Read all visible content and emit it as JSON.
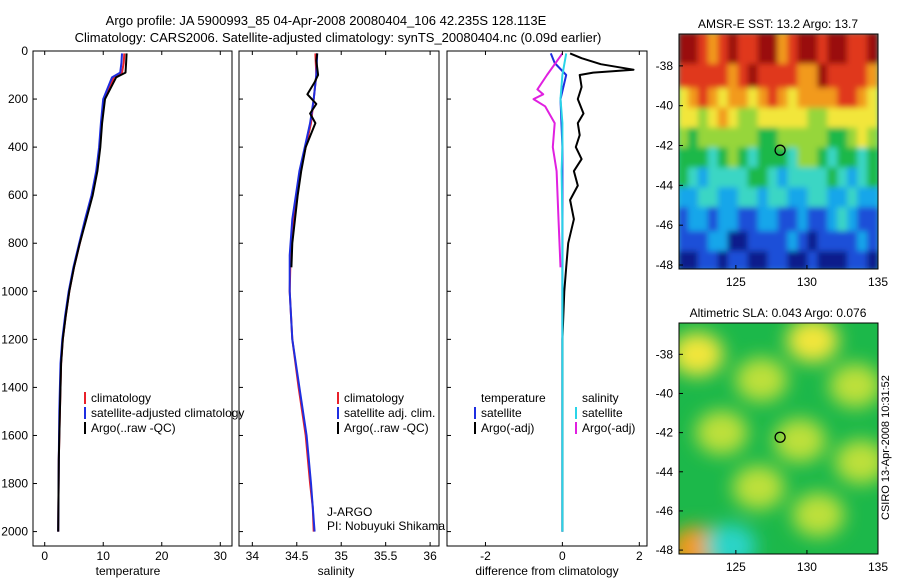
{
  "figure": {
    "title_line1": "Argo profile: JA 5900993_85 04-Apr-2008 20080404_106 42.235S 128.113E",
    "title_line2": "Climatology: CARS2006. Satellite-adjusted climatology: synTS_20080404.nc (0.09d earlier)",
    "footer": "CSIRO 13-Apr-2008 10:31:52"
  },
  "colors": {
    "climatology": "#e8202a",
    "satellite": "#1e2ee0",
    "argo": "#000000",
    "satellite_salinity_diff": "#2ad4e8",
    "argo_salinity_diff": "#e020e0"
  },
  "chart_data": [
    {
      "type": "line",
      "id": "temperature",
      "xlabel": "temperature",
      "xlim": [
        -2,
        32
      ],
      "ylim": [
        0,
        2060
      ],
      "y_reversed": true,
      "xticks": [
        0,
        10,
        20,
        30
      ],
      "xtick_labels": [
        "0",
        "10",
        "20",
        "30"
      ],
      "yticks": [
        0,
        200,
        400,
        600,
        800,
        1000,
        1200,
        1400,
        1600,
        1800,
        2000
      ],
      "ytick_labels": [
        "0",
        "200",
        "400",
        "600",
        "800",
        "1000",
        "1200",
        "1400",
        "1600",
        "1800",
        "2000"
      ],
      "legend": [
        "climatology",
        "satellite-adjusted climatology",
        "Argo(..raw -QC)"
      ],
      "series": [
        {
          "name": "climatology",
          "color": "#e8202a",
          "x": [
            13.6,
            13.5,
            13.2,
            11.8,
            10.2,
            9.7,
            9.4,
            8.9,
            8.1,
            7.0,
            6.0,
            5.0,
            4.2,
            3.6,
            3.1,
            2.8,
            2.6,
            2.4,
            2.3
          ],
          "y": [
            10,
            50,
            90,
            110,
            200,
            300,
            400,
            500,
            600,
            700,
            800,
            900,
            1000,
            1100,
            1200,
            1300,
            1500,
            1700,
            2000
          ]
        },
        {
          "name": "satellite-adjusted climatology",
          "color": "#1e2ee0",
          "x": [
            13.2,
            13.1,
            12.9,
            11.5,
            10.0,
            9.6,
            9.3,
            8.8,
            8.0,
            6.9,
            5.9,
            4.9,
            4.1,
            3.5,
            3.0,
            2.7,
            2.5,
            2.4,
            2.3
          ],
          "y": [
            10,
            50,
            90,
            110,
            200,
            300,
            400,
            500,
            600,
            700,
            800,
            900,
            1000,
            1100,
            1200,
            1300,
            1500,
            1700,
            2000
          ]
        },
        {
          "name": "Argo(..raw -QC)",
          "color": "#000000",
          "x": [
            14.0,
            13.9,
            13.8,
            12.2,
            10.3,
            9.8,
            9.5,
            9.0,
            8.2,
            7.1,
            6.0,
            5.0,
            4.2,
            3.6,
            3.1,
            2.8,
            2.6,
            2.4,
            2.3
          ],
          "y": [
            10,
            50,
            90,
            110,
            200,
            300,
            400,
            500,
            600,
            700,
            800,
            900,
            1000,
            1100,
            1200,
            1300,
            1500,
            1700,
            2000
          ]
        }
      ]
    },
    {
      "type": "line",
      "id": "salinity",
      "xlabel": "salinity",
      "xlim": [
        33.85,
        36.1
      ],
      "ylim": [
        0,
        2060
      ],
      "y_reversed": true,
      "xticks": [
        34,
        34.5,
        35,
        35.5,
        36
      ],
      "xtick_labels": [
        "34",
        "34.5",
        "35",
        "35.5",
        "36"
      ],
      "legend": [
        "climatology",
        "satellite adj. clim.",
        "Argo(..raw -QC)"
      ],
      "annotation": [
        "J-ARGO",
        "PI: Nobuyuki Shikama"
      ],
      "series": [
        {
          "name": "climatology",
          "color": "#e8202a",
          "x": [
            34.71,
            34.72,
            34.69,
            34.66,
            34.6,
            34.54,
            34.5,
            34.46,
            34.43,
            34.42,
            34.45,
            34.52,
            34.6,
            34.65,
            34.68,
            34.69
          ],
          "y": [
            10,
            100,
            200,
            300,
            400,
            500,
            600,
            700,
            850,
            1000,
            1200,
            1400,
            1600,
            1800,
            1900,
            2000
          ]
        },
        {
          "name": "satellite adj. clim.",
          "color": "#1e2ee0",
          "x": [
            34.73,
            34.72,
            34.69,
            34.65,
            34.59,
            34.53,
            34.49,
            34.45,
            34.42,
            34.42,
            34.45,
            34.53,
            34.61,
            34.66,
            34.68,
            34.7
          ],
          "y": [
            10,
            100,
            200,
            300,
            400,
            500,
            600,
            700,
            850,
            1000,
            1200,
            1400,
            1600,
            1800,
            1900,
            2000
          ]
        },
        {
          "name": "Argo(..raw -QC)",
          "color": "#000000",
          "x": [
            34.73,
            34.72,
            34.74,
            34.7,
            34.62,
            34.72,
            34.65,
            34.71,
            34.6,
            34.55,
            34.51,
            34.48,
            34.45,
            34.44
          ],
          "y": [
            10,
            40,
            100,
            130,
            180,
            220,
            260,
            300,
            400,
            500,
            600,
            700,
            800,
            900
          ]
        }
      ]
    },
    {
      "type": "line",
      "id": "difference",
      "xlabel": "difference from climatology",
      "xlim": [
        -3,
        2.2
      ],
      "ylim": [
        0,
        2060
      ],
      "y_reversed": true,
      "xticks": [
        -2,
        0,
        2
      ],
      "xtick_labels": [
        "-2",
        "0",
        "2"
      ],
      "legend_left": [
        "temperature",
        "satellite",
        "Argo(-adj)"
      ],
      "legend_right": [
        "salinity",
        "satellite",
        "Argo(-adj)"
      ],
      "series": [
        {
          "name": "temperature satellite",
          "color": "#1e2ee0",
          "x": [
            -0.3,
            -0.2,
            0.1,
            -0.05,
            0.0,
            0.0,
            0.0,
            0.0,
            0.0
          ],
          "y": [
            10,
            50,
            100,
            200,
            400,
            600,
            1000,
            1500,
            2000
          ]
        },
        {
          "name": "temperature Argo(-adj)",
          "color": "#000000",
          "x": [
            0.2,
            0.5,
            1.0,
            1.85,
            0.8,
            0.45,
            0.5,
            0.4,
            0.55,
            0.4,
            0.45,
            0.35,
            0.5,
            0.3,
            0.4,
            0.2,
            0.3,
            0.15,
            0.1,
            0.05,
            0.0,
            0.0
          ],
          "y": [
            10,
            30,
            55,
            78,
            90,
            100,
            150,
            200,
            260,
            300,
            350,
            400,
            450,
            500,
            560,
            620,
            700,
            800,
            900,
            1000,
            1200,
            2000
          ]
        },
        {
          "name": "salinity satellite",
          "color": "#2ad4e8",
          "x": [
            0.1,
            0.0,
            -0.05,
            0.0,
            0.0,
            -0.02,
            0.0,
            0.0,
            0.0,
            0.0
          ],
          "y": [
            10,
            100,
            200,
            300,
            400,
            500,
            700,
            1000,
            1500,
            2000
          ]
        },
        {
          "name": "salinity Argo(-adj)",
          "color": "#e020e0",
          "x": [
            0.0,
            -0.4,
            -0.65,
            -0.5,
            -0.75,
            -0.45,
            -0.2,
            -0.25,
            -0.15,
            -0.1,
            -0.05
          ],
          "y": [
            10,
            100,
            160,
            180,
            200,
            230,
            300,
            400,
            500,
            700,
            900
          ]
        }
      ]
    },
    {
      "type": "heatmap",
      "id": "sst_map",
      "title": "AMSR-E SST: 13.2 Argo: 13.7",
      "xlim": [
        121,
        135
      ],
      "ylim": [
        -48.2,
        -36.4
      ],
      "xticks": [
        125,
        130,
        135
      ],
      "xtick_labels": [
        "125",
        "130",
        "135"
      ],
      "yticks": [
        -38,
        -40,
        -42,
        -44,
        -46,
        -48
      ],
      "ytick_labels": [
        "-38",
        "-40",
        "-42",
        "-44",
        "-46",
        "-48"
      ],
      "marker": {
        "lon": 128.113,
        "lat": -42.235
      },
      "colormap": [
        "#0a1a8c",
        "#1f4fd8",
        "#16a6ea",
        "#3ad6c4",
        "#1cb84a",
        "#96d63a",
        "#f2e63a",
        "#f29a1c",
        "#e0381c",
        "#9a0a0a"
      ],
      "lat_bands": [
        {
          "lat": -36.4,
          "value": 8.6
        },
        {
          "lat": -38.0,
          "value": 8.2
        },
        {
          "lat": -39.2,
          "value": 7.4
        },
        {
          "lat": -40.2,
          "value": 6.5
        },
        {
          "lat": -41.2,
          "value": 5.1
        },
        {
          "lat": -42.2,
          "value": 4.4
        },
        {
          "lat": -43.2,
          "value": 3.5
        },
        {
          "lat": -44.2,
          "value": 2.8
        },
        {
          "lat": -45.2,
          "value": 2.0
        },
        {
          "lat": -46.4,
          "value": 1.2
        },
        {
          "lat": -47.4,
          "value": 0.5
        },
        {
          "lat": -48.2,
          "value": 0.2
        }
      ]
    },
    {
      "type": "heatmap",
      "id": "sla_map",
      "title": "Altimetric SLA: 0.043 Argo: 0.076",
      "xlim": [
        121,
        135
      ],
      "ylim": [
        -48.2,
        -36.4
      ],
      "xticks": [
        125,
        130,
        135
      ],
      "xtick_labels": [
        "125",
        "130",
        "135"
      ],
      "yticks": [
        -38,
        -40,
        -42,
        -44,
        -46,
        -48
      ],
      "ytick_labels": [
        "-38",
        "-40",
        "-42",
        "-44",
        "-46",
        "-48"
      ],
      "marker": {
        "lon": 128.113,
        "lat": -42.235
      },
      "colormap": [
        "#2ad4c8",
        "#1cb84a",
        "#5ccf3a",
        "#bde03a",
        "#f2e63a",
        "#f29a1c"
      ],
      "blobs": [
        {
          "lon": 122.3,
          "lat": -38.0,
          "value": 3.6
        },
        {
          "lon": 126.8,
          "lat": -39.3,
          "value": 3.2
        },
        {
          "lon": 130.4,
          "lat": -37.3,
          "value": 3.5
        },
        {
          "lon": 133.4,
          "lat": -39.6,
          "value": 3.1
        },
        {
          "lon": 124.0,
          "lat": -42.0,
          "value": 2.6
        },
        {
          "lon": 129.5,
          "lat": -42.4,
          "value": 3.1
        },
        {
          "lon": 133.8,
          "lat": -43.5,
          "value": 3.3
        },
        {
          "lon": 126.6,
          "lat": -44.8,
          "value": 3.0
        },
        {
          "lon": 130.8,
          "lat": -46.2,
          "value": 3.2
        },
        {
          "lon": 122.2,
          "lat": -47.9,
          "value": 4.5
        },
        {
          "lon": 124.6,
          "lat": -47.8,
          "value": 0.4
        }
      ]
    }
  ]
}
